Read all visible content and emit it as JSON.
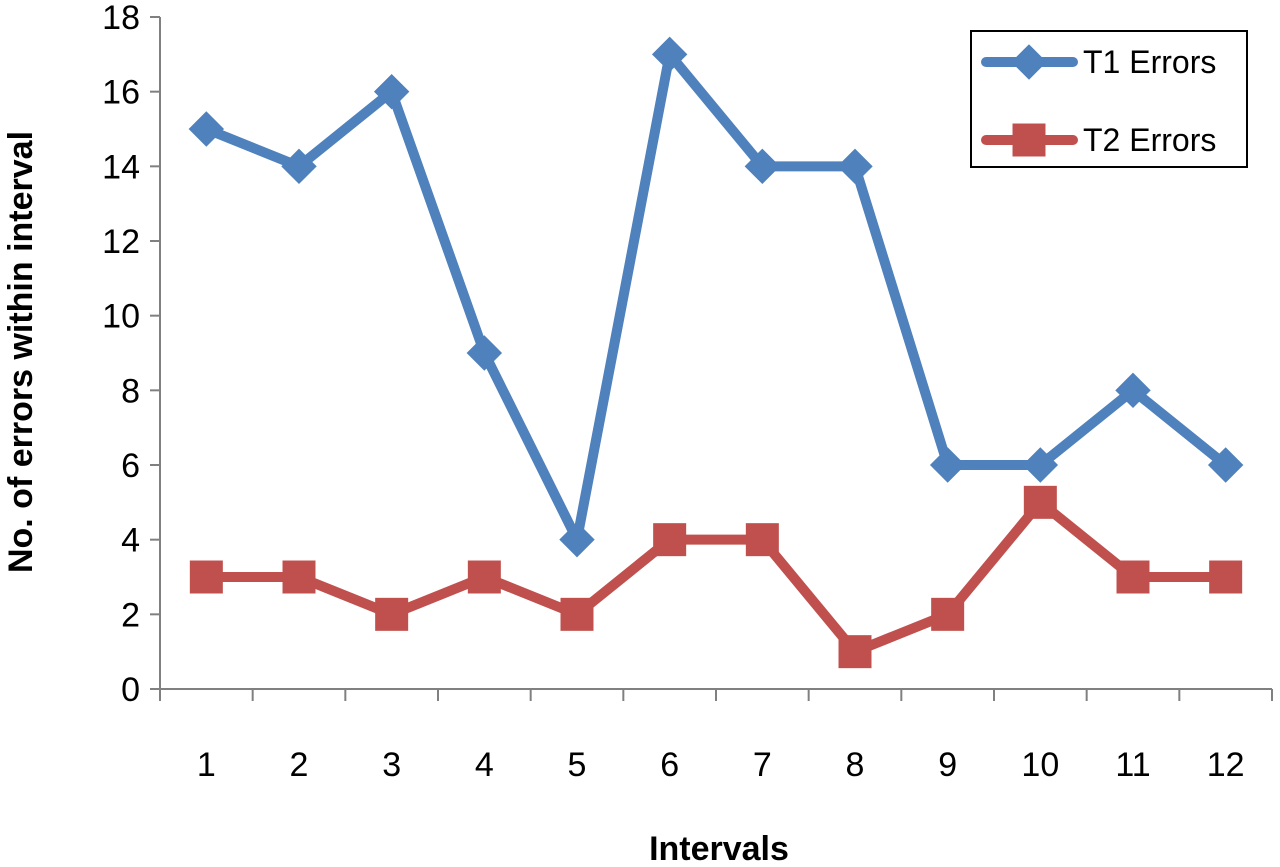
{
  "chart_data": {
    "type": "line",
    "title": "",
    "xlabel": "Intervals",
    "ylabel": "No. of errors within interval",
    "categories": [
      "1",
      "2",
      "3",
      "4",
      "5",
      "6",
      "7",
      "8",
      "9",
      "10",
      "11",
      "12"
    ],
    "ylim": [
      0,
      18
    ],
    "yticks": [
      "0",
      "2",
      "4",
      "6",
      "8",
      "10",
      "12",
      "14",
      "16",
      "18"
    ],
    "grid": false,
    "legend_position": "top-right",
    "series": [
      {
        "name": "T1 Errors",
        "color": "#4F81BD",
        "marker": "diamond",
        "values": [
          15,
          14,
          16,
          9,
          4,
          17,
          14,
          14,
          6,
          6,
          8,
          6
        ]
      },
      {
        "name": "T2 Errors",
        "color": "#C0504D",
        "marker": "square",
        "values": [
          3,
          3,
          2,
          3,
          2,
          4,
          4,
          1,
          2,
          5,
          3,
          3
        ]
      }
    ]
  }
}
